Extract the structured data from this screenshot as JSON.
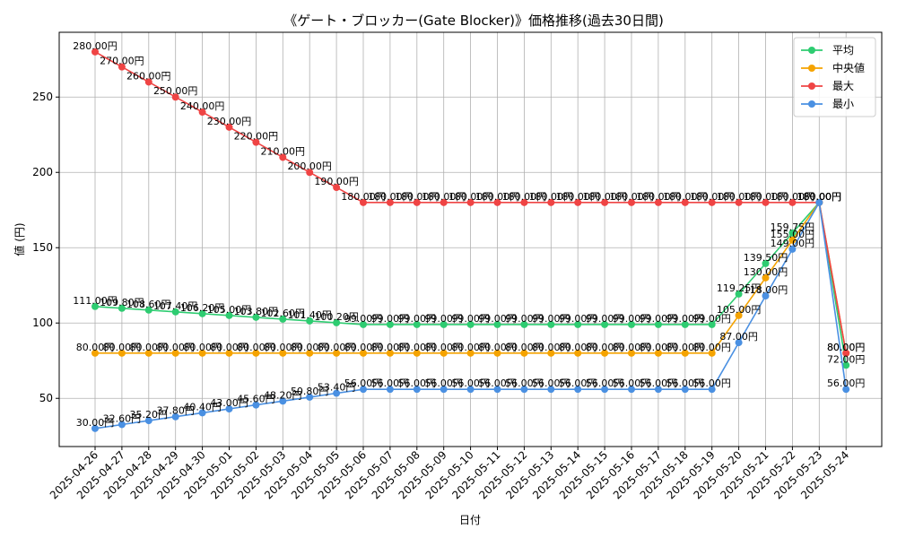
{
  "chart_data": {
    "type": "line",
    "title": "《ゲート・ブロッカー(Gate Blocker)》価格推移(過去30日間)",
    "xlabel": "日付",
    "ylabel": "値 (円)",
    "ylim": [
      18,
      293
    ],
    "yticks": [
      50,
      100,
      150,
      200,
      250
    ],
    "grid": true,
    "legend_position": "top-right",
    "label_suffix": "円",
    "categories": [
      "2025-04-26",
      "2025-04-27",
      "2025-04-28",
      "2025-04-29",
      "2025-04-30",
      "2025-05-01",
      "2025-05-02",
      "2025-05-03",
      "2025-05-04",
      "2025-05-05",
      "2025-05-06",
      "2025-05-07",
      "2025-05-08",
      "2025-05-09",
      "2025-05-10",
      "2025-05-11",
      "2025-05-12",
      "2025-05-13",
      "2025-05-14",
      "2025-05-15",
      "2025-05-16",
      "2025-05-17",
      "2025-05-18",
      "2025-05-19",
      "2025-05-20",
      "2025-05-21",
      "2025-05-22",
      "2025-05-23",
      "2025-05-24"
    ],
    "series": [
      {
        "name": "平均",
        "color": "#2ecc71",
        "values": [
          111.0,
          109.8,
          108.6,
          107.4,
          106.2,
          105.0,
          103.8,
          102.6,
          101.4,
          100.2,
          99.0,
          99.0,
          99.0,
          99.0,
          99.0,
          99.0,
          99.0,
          99.0,
          99.0,
          99.0,
          99.0,
          99.0,
          99.0,
          99.0,
          119.25,
          139.5,
          159.75,
          180.0,
          72.0
        ]
      },
      {
        "name": "中央値",
        "color": "#f5a300",
        "values": [
          80,
          80,
          80,
          80,
          80,
          80,
          80,
          80,
          80,
          80,
          80,
          80,
          80,
          80,
          80,
          80,
          80,
          80,
          80,
          80,
          80,
          80,
          80,
          80,
          105,
          130,
          155,
          180,
          80
        ]
      },
      {
        "name": "最大",
        "color": "#ef4444",
        "values": [
          280,
          270,
          260,
          250,
          240,
          230,
          220,
          210,
          200,
          190,
          180,
          180,
          180,
          180,
          180,
          180,
          180,
          180,
          180,
          180,
          180,
          180,
          180,
          180,
          180,
          180,
          180,
          180,
          80
        ]
      },
      {
        "name": "最小",
        "color": "#4a90e2",
        "values": [
          30,
          32.6,
          35.2,
          37.8,
          40.4,
          43.0,
          45.6,
          48.2,
          50.8,
          53.4,
          56,
          56,
          56,
          56,
          56,
          56,
          56,
          56,
          56,
          56,
          56,
          56,
          56,
          56,
          87,
          118,
          149,
          180,
          56
        ]
      }
    ]
  }
}
